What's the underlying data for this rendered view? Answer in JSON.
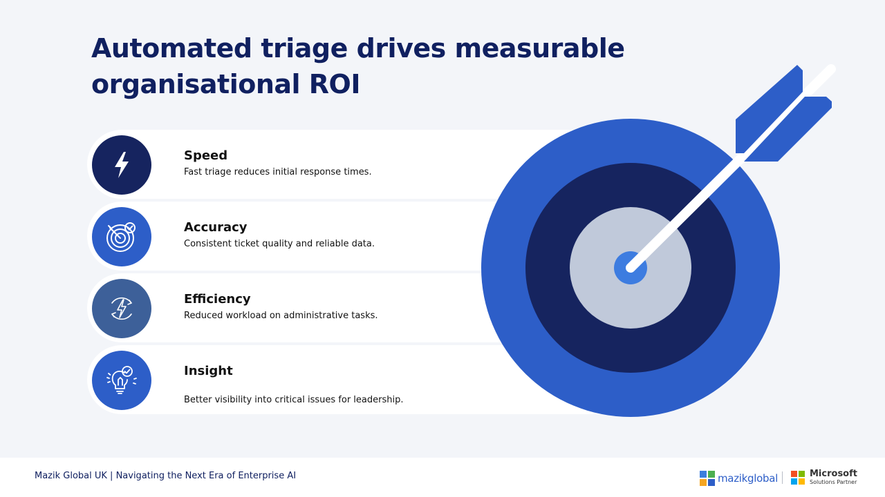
{
  "title": "Automated triage drives measurable organisational ROI",
  "items": [
    {
      "title": "Speed",
      "description": "Fast triage reduces initial response times.",
      "icon": "lightning-bolt-icon"
    },
    {
      "title": "Accuracy",
      "description": "Consistent ticket quality and reliable data.",
      "icon": "target-check-icon"
    },
    {
      "title": "Efficiency",
      "description": "Reduced workload on administrative tasks.",
      "icon": "energy-cycle-icon"
    },
    {
      "title": "Insight",
      "description": "Better visibility into critical issues for leadership.",
      "icon": "lightbulb-check-icon"
    }
  ],
  "illustration": {
    "icon": "bullseye-arrow-icon"
  },
  "footer": {
    "text": "Mazik Global UK | Navigating the Next Era of Enterprise AI",
    "mazik_logo_text": "mazikglobal",
    "ms_name": "Microsoft",
    "ms_sub": "Solutions Partner"
  },
  "colors": {
    "navy": "#16245f",
    "blue": "#2d5ec8",
    "steel_blue": "#3d6099",
    "light_gray_blue": "#c0c9da",
    "background": "#f3f5f9"
  }
}
